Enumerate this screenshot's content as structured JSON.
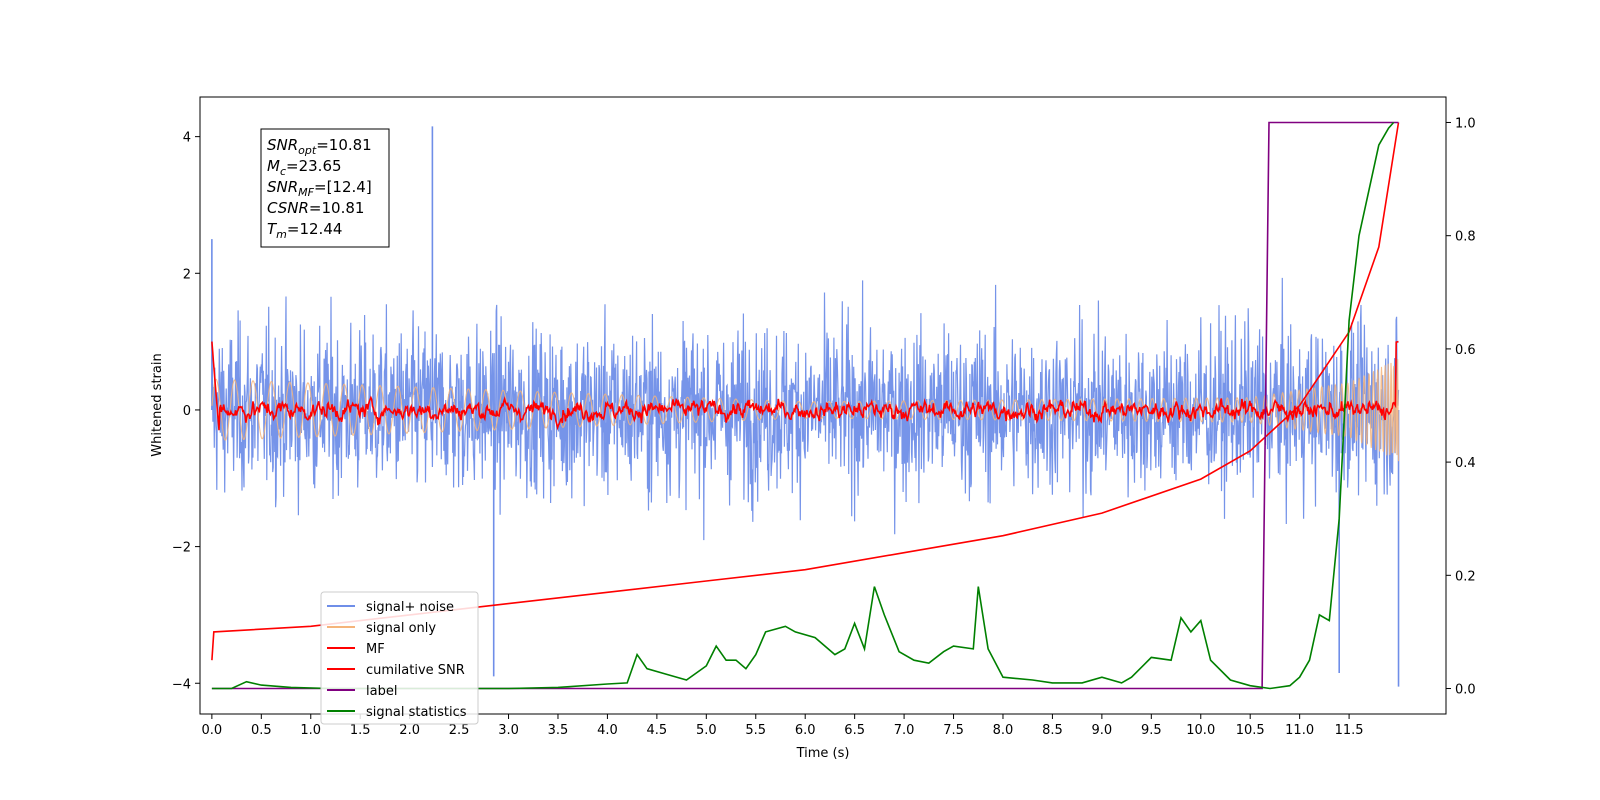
{
  "chart_data": {
    "type": "line",
    "title": "",
    "xlabel": "Time (s)",
    "ylabel": "Whitened strain",
    "y2label": "",
    "xlim": [
      -0.12,
      12.48
    ],
    "ylim": [
      -4.45,
      4.58
    ],
    "y2lim": [
      -0.045,
      1.045
    ],
    "xticks": [
      "0.0",
      "0.5",
      "1.0",
      "1.5",
      "2.0",
      "2.5",
      "3.0",
      "3.5",
      "4.0",
      "4.5",
      "5.0",
      "5.5",
      "6.0",
      "6.5",
      "7.0",
      "7.5",
      "8.0",
      "8.5",
      "9.0",
      "9.5",
      "10.0",
      "10.5",
      "11.0",
      "11.5"
    ],
    "yticks": [
      "−4",
      "−2",
      "0",
      "2",
      "4"
    ],
    "y2ticks": [
      "0.0",
      "0.2",
      "0.4",
      "0.6",
      "0.8",
      "1.0"
    ],
    "grid": false,
    "legend_position": "lower-left",
    "colors": {
      "signal_noise": "#6f8ee8",
      "signal_only": "#f5b47a",
      "mf": "#ff0000",
      "cumulative_snr": "#ff0000",
      "label": "#800080",
      "signal_statistics": "#008000"
    },
    "annotation": [
      {
        "base": "SNR",
        "sub": "opt",
        "value": "=10.81"
      },
      {
        "base": "M",
        "sub": "c",
        "value": "=23.65"
      },
      {
        "base": "SNR",
        "sub": "MF",
        "value": "=[12.4]"
      },
      {
        "base": "CSNR",
        "sub": "",
        "value": "=10.81"
      },
      {
        "base": "T",
        "sub": "m",
        "value": "=12.44"
      }
    ],
    "series": [
      {
        "name": "signal+ noise",
        "axis": "left",
        "description_points": "noisy oscillation between about -3 and 4",
        "x": [
          0.0,
          2.23,
          2.85,
          11.4,
          12.0
        ],
        "y": [
          2.5,
          4.15,
          -3.9,
          -3.85,
          -4.05
        ]
      },
      {
        "name": "signal only",
        "axis": "left",
        "x": [
          0.0,
          6.0,
          10.5,
          11.5,
          12.0
        ],
        "y_amplitude": [
          0.45,
          0.12,
          0.18,
          0.4,
          0.75
        ]
      },
      {
        "name": "MF",
        "axis": "left",
        "x": [
          0.0,
          0.1,
          0.6,
          1.1,
          2.8,
          5.6,
          9.0,
          12.0
        ],
        "y": [
          1.0,
          0.1,
          0.15,
          0.25,
          0.2,
          0.2,
          0.15,
          1.0
        ]
      },
      {
        "name": "cumilative SNR",
        "axis": "right",
        "x": [
          0.0,
          0.02,
          1.0,
          2.0,
          3.0,
          4.0,
          5.0,
          6.0,
          7.0,
          8.0,
          9.0,
          10.0,
          10.5,
          11.0,
          11.5,
          11.8,
          12.0
        ],
        "y": [
          0.05,
          0.1,
          0.11,
          0.13,
          0.15,
          0.17,
          0.19,
          0.21,
          0.24,
          0.27,
          0.31,
          0.37,
          0.42,
          0.5,
          0.63,
          0.78,
          1.0
        ]
      },
      {
        "name": "label",
        "axis": "right",
        "x": [
          0.0,
          10.62,
          10.69,
          12.0
        ],
        "y": [
          0.0,
          0.0,
          1.0,
          1.0
        ]
      },
      {
        "name": "signal statistics",
        "axis": "right",
        "x": [
          0.0,
          0.2,
          0.35,
          0.5,
          0.8,
          1.2,
          2.0,
          3.0,
          3.5,
          4.0,
          4.2,
          4.3,
          4.4,
          4.6,
          4.8,
          5.0,
          5.1,
          5.2,
          5.3,
          5.4,
          5.5,
          5.6,
          5.8,
          5.9,
          6.1,
          6.3,
          6.4,
          6.5,
          6.6,
          6.7,
          6.8,
          6.95,
          7.1,
          7.25,
          7.4,
          7.5,
          7.7,
          7.75,
          7.85,
          8.0,
          8.3,
          8.5,
          8.8,
          9.0,
          9.2,
          9.3,
          9.5,
          9.7,
          9.8,
          9.9,
          10.0,
          10.1,
          10.3,
          10.5,
          10.7,
          10.9,
          11.0,
          11.1,
          11.2,
          11.3,
          11.4,
          11.5,
          11.6,
          11.7,
          11.8,
          11.9,
          11.95
        ],
        "y": [
          0.0,
          0.0,
          0.012,
          0.006,
          0.002,
          0.0,
          0.0,
          0.0,
          0.002,
          0.008,
          0.01,
          0.06,
          0.035,
          0.025,
          0.015,
          0.04,
          0.075,
          0.05,
          0.05,
          0.035,
          0.06,
          0.1,
          0.11,
          0.1,
          0.09,
          0.06,
          0.07,
          0.115,
          0.07,
          0.18,
          0.13,
          0.065,
          0.05,
          0.045,
          0.065,
          0.075,
          0.07,
          0.18,
          0.07,
          0.02,
          0.015,
          0.01,
          0.01,
          0.02,
          0.01,
          0.02,
          0.055,
          0.05,
          0.125,
          0.1,
          0.12,
          0.05,
          0.015,
          0.005,
          0.0,
          0.005,
          0.02,
          0.05,
          0.13,
          0.12,
          0.3,
          0.65,
          0.8,
          0.88,
          0.96,
          0.99,
          1.0
        ]
      }
    ]
  }
}
